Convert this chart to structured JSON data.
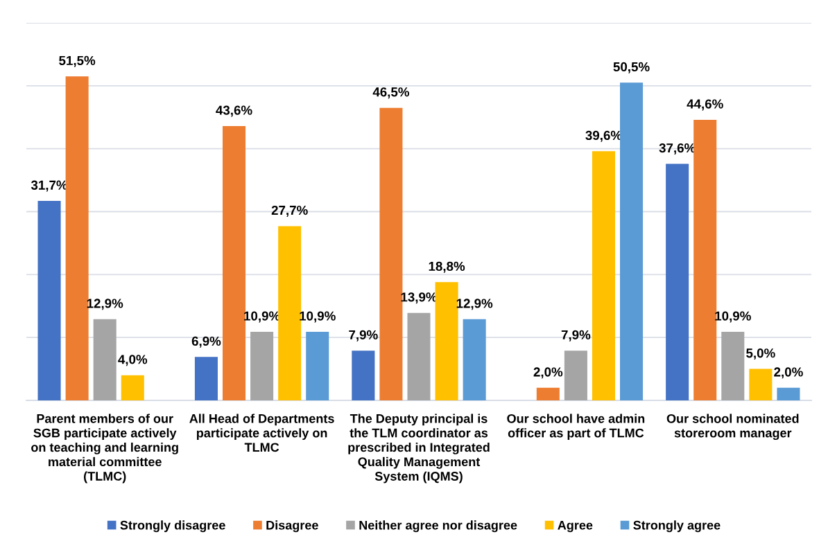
{
  "chart_data": {
    "type": "bar",
    "categories": [
      "Parent members of our\nSGB participate actively\non teaching and learning\nmaterial committee\n(TLMC)",
      "All Head of Departments\nparticipate actively on\nTLMC",
      "The Deputy principal is\nthe TLM coordinator as\nprescribed in Integrated\nQuality Management\nSystem (IQMS)",
      "Our school have admin\nofficer as part of TLMC",
      "Our school nominated\nstoreroom manager"
    ],
    "series": [
      {
        "name": "Strongly disagree",
        "color": "#4472c4",
        "values": [
          31.7,
          6.9,
          7.9,
          null,
          37.6
        ],
        "value_labels": [
          "31,7%",
          "6,9%",
          "7,9%",
          null,
          "37,6%"
        ]
      },
      {
        "name": "Disagree",
        "color": "#ed7d31",
        "values": [
          51.5,
          43.6,
          46.5,
          2.0,
          44.6
        ],
        "value_labels": [
          "51,5%",
          "43,6%",
          "46,5%",
          "2,0%",
          "44,6%"
        ]
      },
      {
        "name": "Neither agree nor disagree",
        "color": "#a5a5a5",
        "values": [
          12.9,
          10.9,
          13.9,
          7.9,
          10.9
        ],
        "value_labels": [
          "12,9%",
          "10,9%",
          "13,9%",
          "7,9%",
          "10,9%"
        ]
      },
      {
        "name": "Agree",
        "color": "#ffc000",
        "values": [
          4.0,
          27.7,
          18.8,
          39.6,
          5.0
        ],
        "value_labels": [
          "4,0%",
          "27,7%",
          "18,8%",
          "39,6%",
          "5,0%"
        ]
      },
      {
        "name": "Strongly agree",
        "color": "#5b9bd5",
        "values": [
          null,
          10.9,
          12.9,
          50.5,
          2.0
        ],
        "value_labels": [
          null,
          "10,9%",
          "12,9%",
          "50,5%",
          "2,0%"
        ]
      }
    ],
    "ylim": [
      0,
      60
    ],
    "yticks": [
      {
        "value": 0,
        "label": null
      },
      {
        "value": 10,
        "label": null
      },
      {
        "value": 20,
        "label": null
      },
      {
        "value": 30,
        "label": null
      },
      {
        "value": 40,
        "label": null
      },
      {
        "value": 50,
        "label": null
      },
      {
        "value": 60,
        "label": null
      }
    ],
    "tick_labels": "x",
    "grid": "y",
    "legend": "bottom"
  }
}
